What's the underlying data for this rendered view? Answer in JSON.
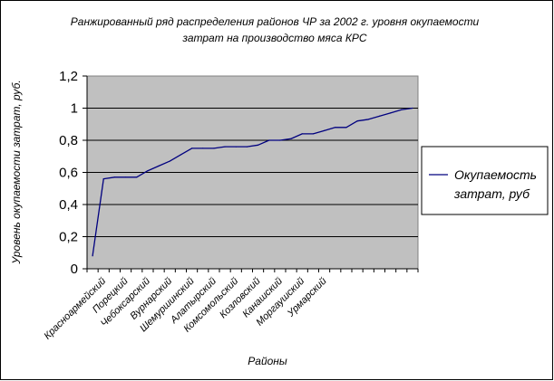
{
  "chart_data": {
    "type": "line",
    "title_lines": [
      "Ранжированный ряд распределения  районов ЧР за 2002 г. уровня окупаемости",
      "затрат на производство мяса КРС"
    ],
    "xlabel": "Районы",
    "ylabel": "Уровень окупаемости затрат, руб.",
    "ylim": [
      0,
      1.2
    ],
    "yticks": [
      "0",
      "0,2",
      "0,4",
      "0,6",
      "0,8",
      "1",
      "1,2"
    ],
    "x_labels_shown": [
      "Красноармейский",
      "Порецкий",
      "Чебоксарский",
      "Вурнарский",
      "Шемуршинский",
      "Алатырский",
      "Комсомольский",
      "Козловский",
      "Канашский",
      "Моргаушский",
      "Урмарский"
    ],
    "grid": true,
    "legend_position": "right",
    "legend_lines": [
      "Окупаемость",
      "затрат, руб"
    ],
    "series": [
      {
        "values": [
          0.08,
          0.56,
          0.57,
          0.57,
          0.57,
          0.61,
          0.64,
          0.67,
          0.71,
          0.75,
          0.75,
          0.75,
          0.76,
          0.76,
          0.76,
          0.77,
          0.8,
          0.8,
          0.81,
          0.84,
          0.84,
          0.86,
          0.88,
          0.88,
          0.92,
          0.93,
          0.95,
          0.97,
          0.99,
          1.0
        ],
        "color": "#00007f"
      }
    ],
    "colors": {
      "plot_background": "#c0c0c0",
      "gridline": "#000000",
      "line": "#00007f",
      "frame": "#000000"
    }
  }
}
